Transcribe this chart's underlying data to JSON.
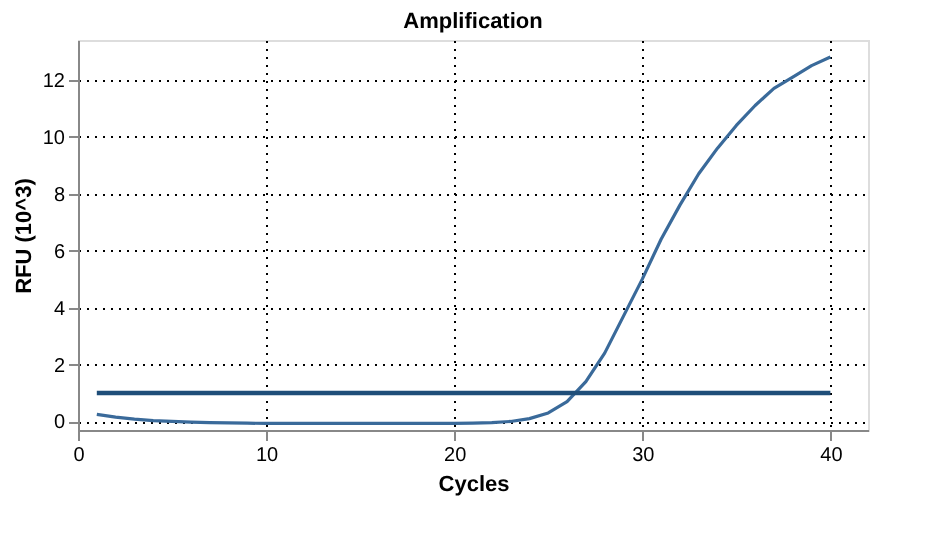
{
  "chart_data": {
    "type": "line",
    "title": "Amplification",
    "xlabel": "Cycles",
    "ylabel": "RFU (10^3)",
    "xlim": [
      0,
      42
    ],
    "xticks": [
      0,
      10,
      20,
      30,
      40
    ],
    "ylim": [
      -0.3,
      13.4
    ],
    "yticks": [
      0,
      2,
      4,
      6,
      8,
      10,
      12
    ],
    "grid": true,
    "legend": false,
    "marker": "none",
    "line_style": "solid",
    "series": [
      {
        "color": "#3a6a9a",
        "x": [
          1,
          2,
          3,
          4,
          5,
          6,
          7,
          8,
          9,
          10,
          11,
          12,
          13,
          14,
          15,
          16,
          17,
          18,
          19,
          20,
          21,
          22,
          23,
          24,
          25,
          26,
          27,
          28,
          29,
          30,
          31,
          32,
          33,
          34,
          35,
          36,
          37,
          38,
          39,
          40
        ],
        "values": [
          0.25,
          0.15,
          0.08,
          0.03,
          0.0,
          -0.02,
          -0.04,
          -0.05,
          -0.06,
          -0.07,
          -0.07,
          -0.07,
          -0.07,
          -0.07,
          -0.07,
          -0.07,
          -0.07,
          -0.07,
          -0.07,
          -0.07,
          -0.06,
          -0.04,
          0.0,
          0.1,
          0.3,
          0.7,
          1.4,
          2.4,
          3.7,
          5.0,
          6.4,
          7.6,
          8.7,
          9.6,
          10.4,
          11.1,
          11.7,
          12.1,
          12.5,
          12.8
        ]
      },
      {
        "color": "#1f4e79",
        "x": [
          1,
          40
        ],
        "values": [
          1,
          1
        ]
      }
    ]
  }
}
